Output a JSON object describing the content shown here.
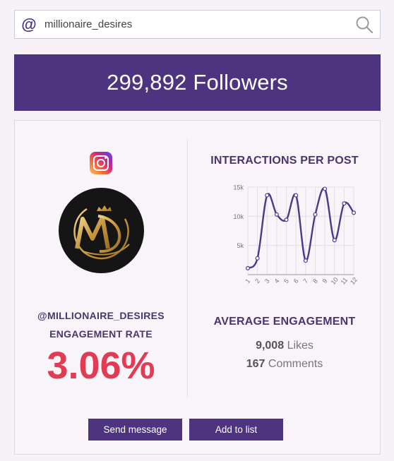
{
  "search": {
    "at_symbol": "@",
    "value": "millionaire_desires",
    "placeholder": ""
  },
  "followers_banner": {
    "text": "299,892 Followers"
  },
  "profile": {
    "platform_icon": "instagram-icon",
    "avatar_monogram": "M",
    "handle": "@MILLIONAIRE_DESIRES",
    "engagement_rate_label": "ENGAGEMENT RATE",
    "engagement_rate_value": "3.06%"
  },
  "interactions": {
    "title": "INTERACTIONS PER POST",
    "chart_data": {
      "type": "line",
      "title": "INTERACTIONS PER POST",
      "xlabel": "",
      "ylabel": "",
      "categories": [
        "1",
        "2",
        "3",
        "4",
        "5",
        "6",
        "7",
        "8",
        "9",
        "10",
        "11",
        "12"
      ],
      "series": [
        {
          "values": [
            1100,
            2800,
            13600,
            10300,
            9400,
            13600,
            2400,
            10300,
            14700,
            5900,
            12200,
            10600
          ]
        }
      ],
      "ylim": [
        0,
        15000
      ],
      "yticks": [
        5000,
        10000,
        15000
      ],
      "ytick_labels": [
        "5k",
        "10k",
        "15k"
      ],
      "grid": true,
      "color": "#4a3a8c"
    }
  },
  "average": {
    "title": "AVERAGE ENGAGEMENT",
    "likes_value": "9,008",
    "likes_label": "Likes",
    "comments_value": "167",
    "comments_label": "Comments"
  },
  "actions": {
    "send_message": "Send message",
    "add_to_list": "Add to list"
  },
  "colors": {
    "brand": "#4e3480",
    "accent": "#e23b52",
    "text_dark": "#4a3570"
  }
}
